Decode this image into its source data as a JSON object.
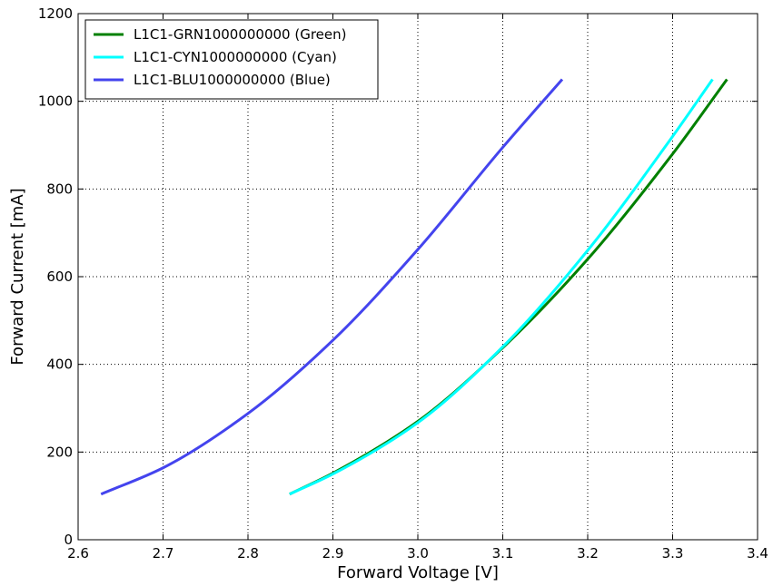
{
  "chart_data": {
    "type": "line",
    "xlabel": "Forward Voltage [V]",
    "ylabel": "Forward Current [mA]",
    "xlim": [
      2.6,
      3.4
    ],
    "ylim": [
      0,
      1200
    ],
    "xticks": [
      "2.6",
      "2.7",
      "2.8",
      "2.9",
      "3.0",
      "3.1",
      "3.2",
      "3.3",
      "3.4"
    ],
    "yticks": [
      "0",
      "200",
      "400",
      "600",
      "800",
      "1000",
      "1200"
    ],
    "grid": true,
    "legend_position": "top-left",
    "series": [
      {
        "name": "L1C1-GRN1000000000 (Green)",
        "color": "#008000",
        "points": [
          [
            2.849,
            104
          ],
          [
            2.9,
            152
          ],
          [
            3.0,
            270
          ],
          [
            3.1,
            438
          ],
          [
            3.2,
            640
          ],
          [
            3.3,
            880
          ],
          [
            3.364,
            1050
          ]
        ]
      },
      {
        "name": "L1C1-CYN1000000000 (Cyan)",
        "color": "#00ffff",
        "points": [
          [
            2.849,
            104
          ],
          [
            2.9,
            150
          ],
          [
            3.0,
            267
          ],
          [
            3.1,
            440
          ],
          [
            3.2,
            660
          ],
          [
            3.3,
            920
          ],
          [
            3.347,
            1050
          ]
        ]
      },
      {
        "name": "L1C1-BLU1000000000 (Blue)",
        "color": "#4444ee",
        "points": [
          [
            2.627,
            104
          ],
          [
            2.7,
            164
          ],
          [
            2.8,
            288
          ],
          [
            2.9,
            455
          ],
          [
            3.0,
            662
          ],
          [
            3.1,
            895
          ],
          [
            3.17,
            1050
          ]
        ]
      }
    ]
  }
}
